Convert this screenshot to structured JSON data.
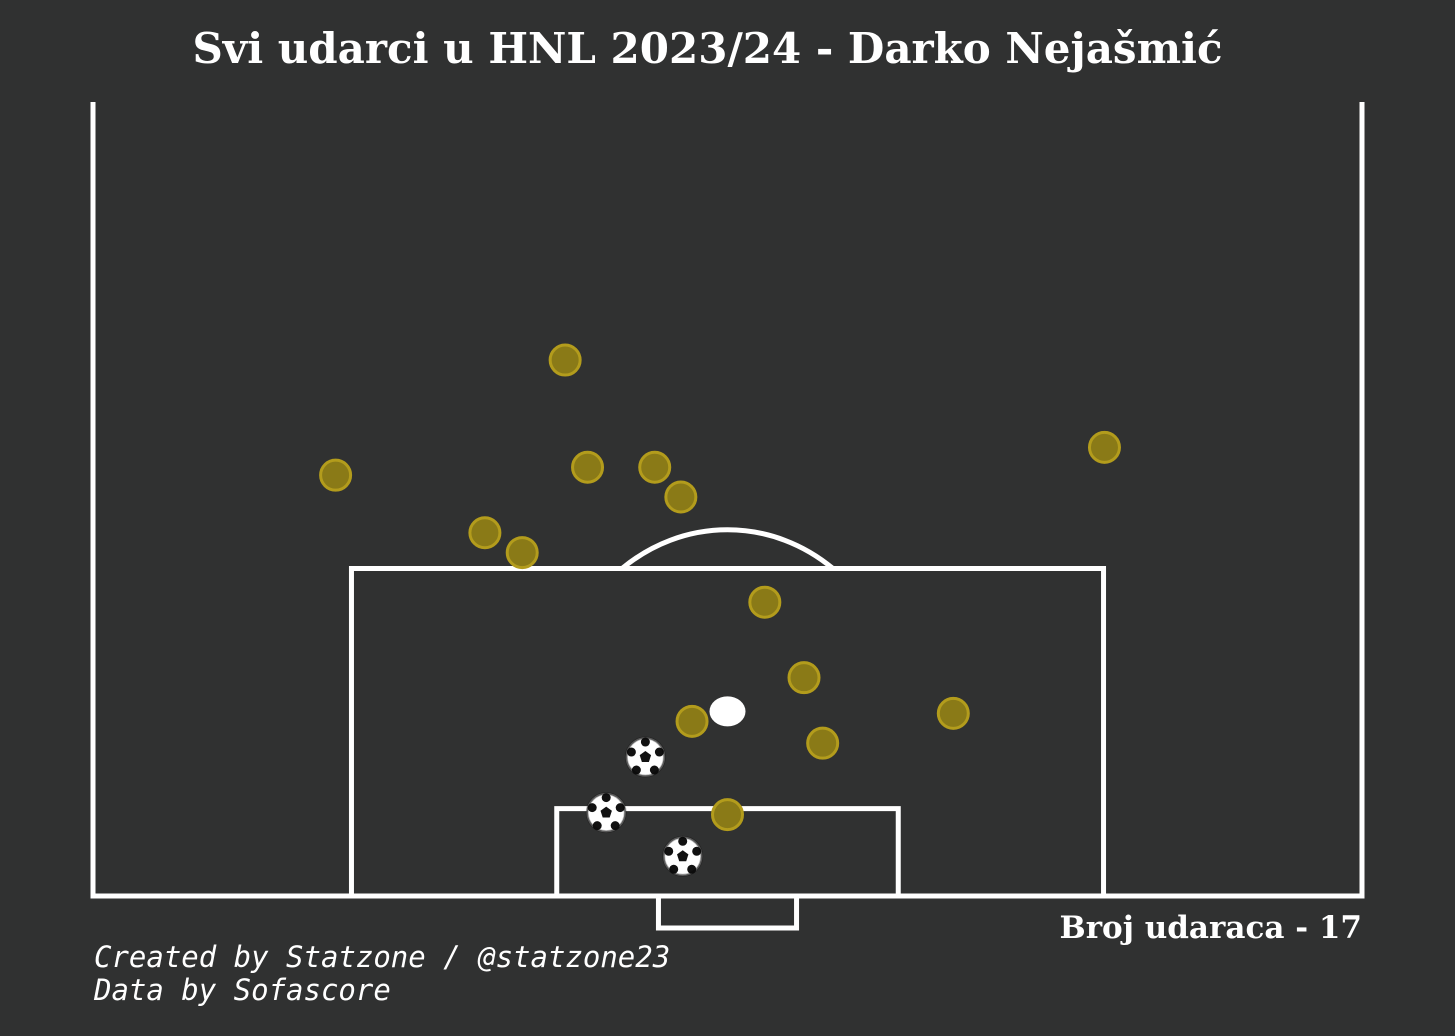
{
  "header": {
    "title": "Svi udarci u HNL 2023/24 - Darko Nejašmić"
  },
  "footer": {
    "count_text": "Broj udaraca - 17",
    "credit_line1": "Created by Statzone / @statzone23",
    "credit_line2": "Data by Sofascore"
  },
  "colors": {
    "background": "#303131",
    "lines": "#ffffff",
    "shot_fill": "#8a7a17",
    "shot_edge": "#b39c1c",
    "goal_marker": "soccer-ball-icon"
  },
  "chart_data": {
    "type": "scatter",
    "title": "Svi udarci u HNL 2023/24 - Darko Nejašmić",
    "xlabel": "",
    "ylabel": "",
    "xlim": [
      0,
      68
    ],
    "ylim": [
      0,
      40
    ],
    "grid": false,
    "legend": "none",
    "shots": [
      {
        "x": 25.3,
        "y": 27.0,
        "outcome": "shot"
      },
      {
        "x": 13.0,
        "y": 21.2,
        "outcome": "shot"
      },
      {
        "x": 26.5,
        "y": 21.6,
        "outcome": "shot"
      },
      {
        "x": 30.1,
        "y": 21.6,
        "outcome": "shot"
      },
      {
        "x": 31.5,
        "y": 20.1,
        "outcome": "shot"
      },
      {
        "x": 21.0,
        "y": 18.3,
        "outcome": "shot"
      },
      {
        "x": 23.0,
        "y": 17.3,
        "outcome": "shot"
      },
      {
        "x": 54.2,
        "y": 22.6,
        "outcome": "shot"
      },
      {
        "x": 36.0,
        "y": 14.8,
        "outcome": "shot"
      },
      {
        "x": 38.1,
        "y": 11.0,
        "outcome": "shot"
      },
      {
        "x": 46.1,
        "y": 9.2,
        "outcome": "shot"
      },
      {
        "x": 32.1,
        "y": 8.8,
        "outcome": "shot"
      },
      {
        "x": 39.1,
        "y": 7.7,
        "outcome": "shot"
      },
      {
        "x": 34.0,
        "y": 4.1,
        "outcome": "shot"
      },
      {
        "x": 29.6,
        "y": 7.0,
        "outcome": "goal"
      },
      {
        "x": 27.5,
        "y": 4.2,
        "outcome": "goal"
      },
      {
        "x": 31.6,
        "y": 2.0,
        "outcome": "goal"
      }
    ],
    "penalty_spot": {
      "x": 34,
      "y": 9.3
    }
  }
}
